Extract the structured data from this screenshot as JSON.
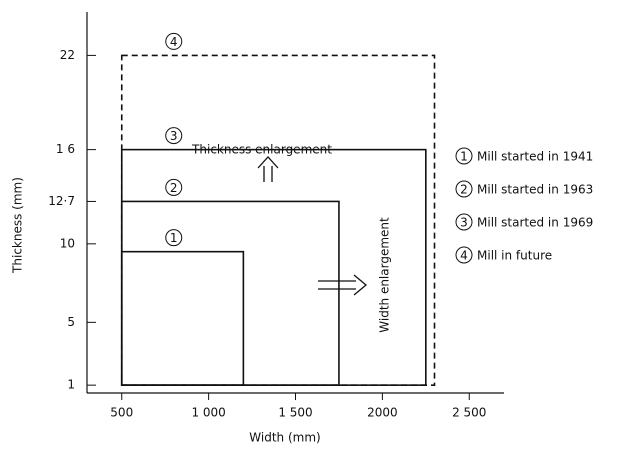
{
  "chart_data": {
    "type": "rectangles",
    "x_label": "Width (mm)",
    "y_label": "Thickness (mm)",
    "xlim": [
      300,
      2700
    ],
    "ylim": [
      0.5,
      24
    ],
    "xticks": [
      500,
      {
        "value": 1000,
        "label": "1 000"
      },
      {
        "value": 1500,
        "label": "1 500"
      },
      2000,
      {
        "value": 2500,
        "label": "2 500"
      }
    ],
    "yticks": [
      1,
      5,
      10,
      {
        "value": 12.7,
        "label": "12·7"
      },
      {
        "value": 16,
        "label": "1 6"
      },
      22
    ],
    "base": {
      "width": 500,
      "thickness": 1
    },
    "color": "#111111",
    "series": [
      {
        "label": "1",
        "name": "Mill started in 1941",
        "width": 1200,
        "thickness": 9.5,
        "style": "solid"
      },
      {
        "label": "2",
        "name": "Mill started in 1963",
        "width": 1750,
        "thickness": 12.7,
        "style": "solid"
      },
      {
        "label": "3",
        "name": "Mill started in 1969",
        "width": 2250,
        "thickness": 16,
        "style": "solid"
      },
      {
        "label": "4",
        "name": "Mill in future",
        "width": 2300,
        "thickness": 22,
        "style": "dashed"
      }
    ],
    "annotations": [
      "Thickness enlargement",
      "Width enlargement"
    ]
  }
}
